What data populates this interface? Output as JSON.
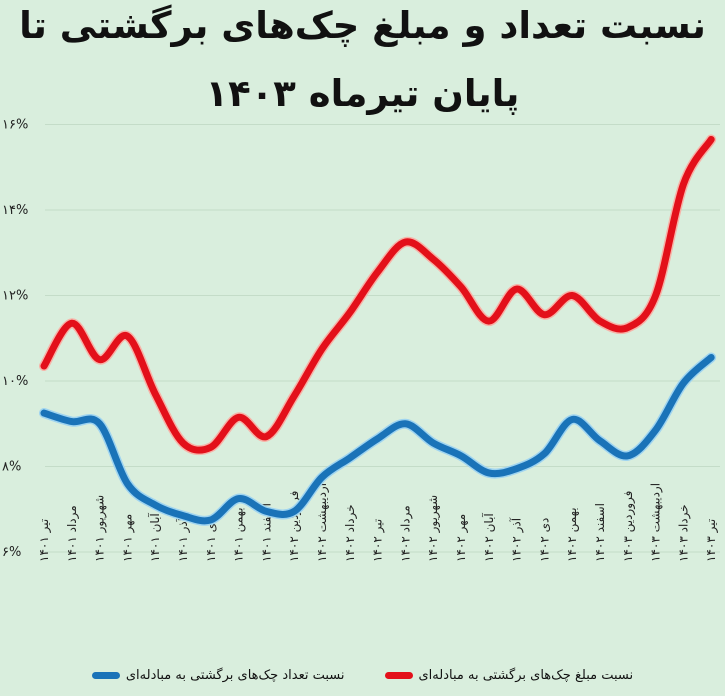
{
  "title": {
    "line1": "نسبت تعداد و مبلغ چک‌های برگشتی تا",
    "line2": "پایان تیرماه ۱۴۰۳"
  },
  "colors": {
    "background": "#d9eedd",
    "amount_series": "#e3101a",
    "count_series": "#1a73b8",
    "grid": "#c4dcc8"
  },
  "legend": {
    "amount_label": "نسبت مبلغ چک‌های برگشتی به مبادله‌ای",
    "count_label": "نسبت تعداد چک‌های برگشتی به مبادله‌ای"
  },
  "y_axis": {
    "ticks": [
      "۶%",
      "۸%",
      "۱۰%",
      "۱۲%",
      "۱۴%",
      "۱۶%"
    ],
    "values": [
      6,
      8,
      10,
      12,
      14,
      16
    ]
  },
  "chart_data": {
    "type": "line",
    "title": "نسبت تعداد و مبلغ چک‌های برگشتی تا پایان تیرماه ۱۴۰۳",
    "xlabel": "",
    "ylabel": "",
    "ylim": [
      6,
      16
    ],
    "grid": true,
    "legend_position": "bottom",
    "categories": [
      "تیر ۱۴۰۱",
      "مرداد ۱۴۰۱",
      "شهریور ۱۴۰۱",
      "مهر ۱۴۰۱",
      "آبان ۱۴۰۱",
      "آذر ۱۴۰۱",
      "دی ۱۴۰۱",
      "بهمن ۱۴۰۱",
      "اسفند ۱۴۰۱",
      "فروردین ۱۴۰۲",
      "اردیبهشت ۱۴۰۲",
      "خرداد ۱۴۰۲",
      "تیر ۱۴۰۲",
      "مرداد ۱۴۰۲",
      "شهریور ۱۴۰۲",
      "مهر ۱۴۰۲",
      "آبان ۱۴۰۲",
      "آذر ۱۴۰۲",
      "دی ۱۴۰۲",
      "بهمن ۱۴۰۲",
      "اسفند ۱۴۰۲",
      "فروردین ۱۴۰۳",
      "اردیبهشت ۱۴۰۳",
      "خرداد ۱۴۰۳",
      "تیر ۱۴۰۳"
    ],
    "series": [
      {
        "name": "نسبت مبلغ چک‌های برگشتی به مبادله‌ای",
        "color": "#e3101a",
        "values": [
          10.35,
          11.35,
          10.5,
          11.05,
          9.7,
          8.55,
          8.45,
          9.15,
          8.7,
          9.65,
          10.75,
          11.6,
          12.55,
          13.25,
          12.85,
          12.2,
          11.4,
          12.15,
          11.55,
          12.0,
          11.4,
          11.25,
          12.0,
          14.6,
          15.65
        ]
      },
      {
        "name": "نسبت تعداد چک‌های برگشتی به مبادله‌ای",
        "color": "#1a73b8",
        "values": [
          9.25,
          9.05,
          9.0,
          7.6,
          7.1,
          6.85,
          6.75,
          7.25,
          6.95,
          6.95,
          7.75,
          8.2,
          8.65,
          9.0,
          8.55,
          8.25,
          7.85,
          7.95,
          8.3,
          9.1,
          8.6,
          8.25,
          8.85,
          9.95,
          10.55
        ]
      }
    ]
  }
}
